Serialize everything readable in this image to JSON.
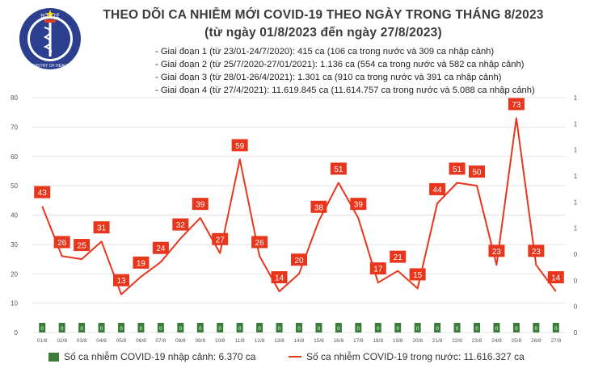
{
  "logo": {
    "text_top": "BỘ Y TẾ",
    "text_bottom": "MINISTRY OF HEALTH",
    "icon": "caduceus-emblem"
  },
  "title_line1": "THEO DÕI CA NHIỄM MỚI COVID-19 THEO NGÀY TRONG THÁNG 8/2023",
  "title_line2": "(từ ngày 01/8/2023 đến ngày 27/8/2023)",
  "notes": [
    "- Giai đoạn 1 (từ 23/01-24/7/2020): 415 ca (106 ca trong nước và 309 ca nhập cảnh)",
    "- Giai đoạn 2 (từ 25/7/2020-27/01/2021): 1.136 ca (554 ca trong nước và 582 ca nhập cảnh)",
    "- Giai đoạn 3 (từ 28/01-26/4/2021): 1.301 ca (910 ca trong nước và 391 ca nhập cảnh)",
    "- Giai đoạn 4 (từ 27/4/2021): 11.619.845 ca (11.614.757 ca trong nước và 5.088 ca nhập cảnh)"
  ],
  "colors": {
    "line": "#e8361c",
    "bar": "#3a7d3a",
    "label_box": "#e8361c",
    "grid": "#e3e3e3"
  },
  "chart_data": {
    "type": "bar+line",
    "categories": [
      "01/8",
      "02/8",
      "03/8",
      "04/8",
      "05/8",
      "06/8",
      "07/8",
      "08/8",
      "09/8",
      "10/8",
      "11/8",
      "12/8",
      "13/8",
      "14/8",
      "15/8",
      "16/8",
      "17/8",
      "18/8",
      "19/8",
      "20/8",
      "21/8",
      "22/8",
      "23/8",
      "24/8",
      "25/8",
      "26/8",
      "27/8"
    ],
    "series": [
      {
        "name": "Số ca nhiễm COVID-19 nhập cảnh: 6.370 ca",
        "type": "bar",
        "values": [
          0,
          0,
          0,
          0,
          0,
          0,
          0,
          0,
          0,
          0,
          0,
          0,
          0,
          0,
          0,
          0,
          0,
          0,
          0,
          0,
          0,
          0,
          0,
          0,
          0,
          0,
          0
        ]
      },
      {
        "name": "Số ca nhiễm COVID-19 trong nước: 11.616.327 ca",
        "type": "line",
        "values": [
          43,
          26,
          25,
          31,
          13,
          19,
          24,
          32,
          39,
          27,
          59,
          26,
          14,
          20,
          38,
          51,
          39,
          17,
          21,
          15,
          44,
          51,
          50,
          23,
          73,
          23,
          14
        ]
      }
    ],
    "ylim": [
      0,
      80
    ],
    "yticks": [
      "0",
      "10",
      "20",
      "30",
      "40",
      "50",
      "60",
      "70",
      "80"
    ],
    "y2_ticks": [
      "0",
      "0",
      "0",
      "0",
      "1",
      "1",
      "1",
      "1",
      "1",
      "1"
    ],
    "data_labels": true,
    "grid": true,
    "legend_position": "bottom"
  }
}
